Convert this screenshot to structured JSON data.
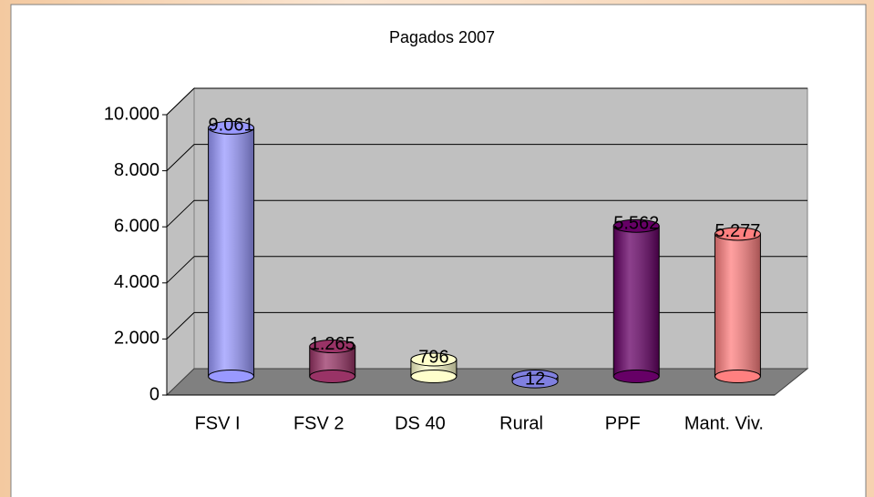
{
  "chart_data": {
    "type": "bar3d",
    "title": "Pagados 2007",
    "categories": [
      "FSV I",
      "FSV 2",
      "DS 40",
      "Rural",
      "PPF",
      "Mant. Viv."
    ],
    "values": [
      9061,
      1265,
      796,
      12,
      5562,
      5277
    ],
    "value_labels": [
      "9.061",
      "1.265",
      "796",
      "12",
      "5.562",
      "5.277"
    ],
    "colors": [
      "#9999ff",
      "#993366",
      "#ffffcc",
      "#8080e0",
      "#660066",
      "#ff8080"
    ],
    "ylim": [
      0,
      10000
    ],
    "yticks": [
      0,
      {
        "value": 2000,
        "label": "2.000"
      },
      {
        "value": 4000,
        "label": "4.000"
      },
      {
        "value": 6000,
        "label": "6.000"
      },
      {
        "value": 8000,
        "label": "8.000"
      },
      {
        "value": 10000,
        "label": "10.000"
      }
    ],
    "grid": true
  }
}
